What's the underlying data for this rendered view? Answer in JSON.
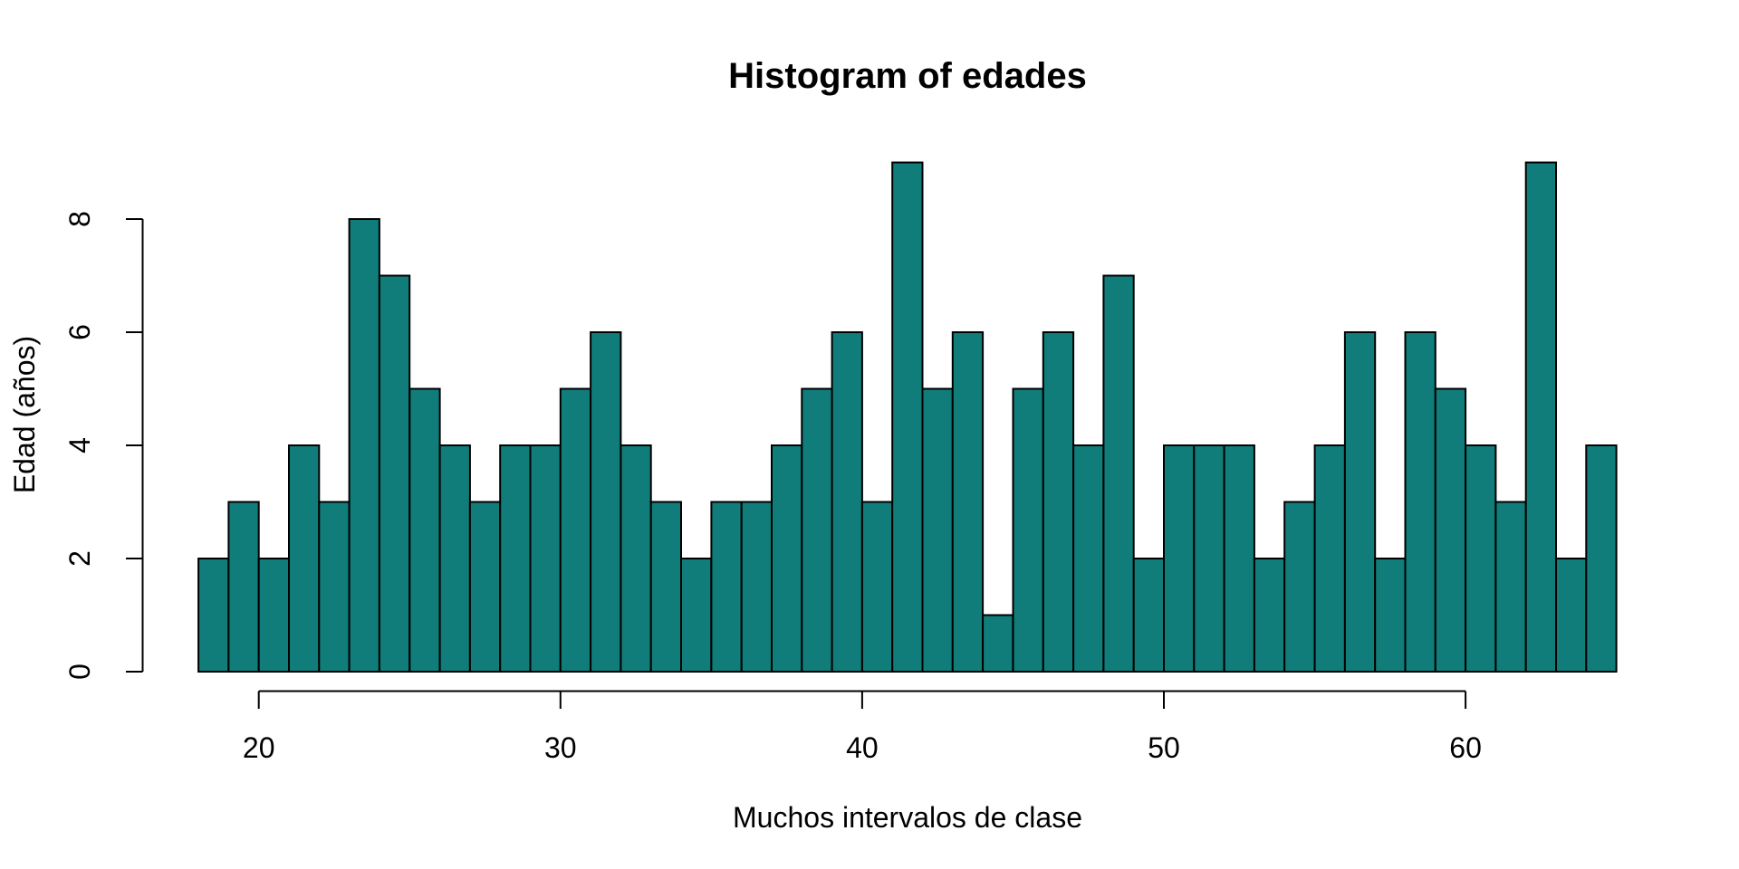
{
  "page": {
    "background": "#ffffff"
  },
  "chart_data": {
    "type": "bar",
    "chart_kind": "histogram",
    "title": "Histogram of edades",
    "xlabel": "Muchos intervalos de clase",
    "ylabel": "Edad (años)",
    "bin_start": 18,
    "bin_width": 1,
    "values": [
      2,
      3,
      2,
      4,
      3,
      8,
      7,
      5,
      4,
      3,
      4,
      4,
      5,
      6,
      4,
      3,
      2,
      3,
      3,
      4,
      5,
      6,
      3,
      9,
      5,
      6,
      1,
      5,
      6,
      4,
      7,
      2,
      4,
      4,
      4,
      2,
      3,
      4,
      6,
      2,
      6,
      5,
      4,
      3,
      9,
      2,
      4
    ],
    "x_ticks": [
      20,
      30,
      40,
      50,
      60
    ],
    "y_ticks": [
      0,
      2,
      4,
      6,
      8
    ],
    "xlim": [
      18,
      65
    ],
    "ylim": [
      0,
      9
    ],
    "grid": false,
    "legend": false,
    "bar_fill": "#107d7a",
    "bar_stroke": "#000000",
    "axis_color": "#000000"
  }
}
